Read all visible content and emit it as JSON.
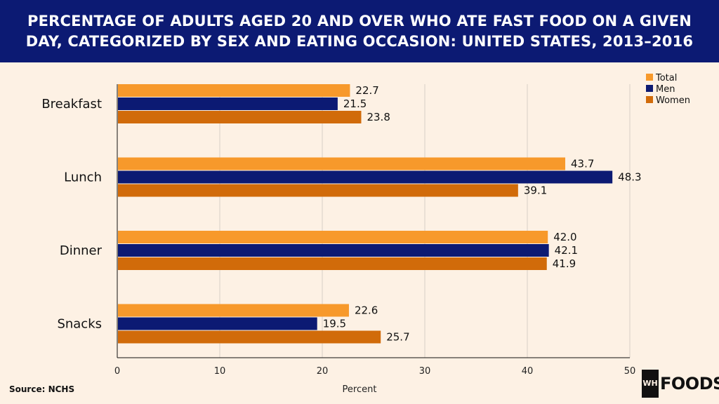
{
  "header": {
    "title": "PERCENTAGE OF ADULTS AGED 20 AND OVER WHO ATE FAST FOOD ON A GIVEN DAY, CATEGORIZED BY SEX AND EATING OCCASION: UNITED STATES, 2013–2016"
  },
  "footer": {
    "source": "Source: NCHS",
    "logo_mark": "WH",
    "logo_text": "FOODS"
  },
  "colors": {
    "header_bg": "#0c1a73",
    "background": "#fdf1e4",
    "total": "#f7992b",
    "men": "#0c1a73",
    "women": "#d16b0a"
  },
  "chart_data": {
    "type": "bar",
    "orientation": "horizontal",
    "title": "PERCENTAGE OF ADULTS AGED 20 AND OVER WHO ATE FAST FOOD ON A GIVEN DAY, CATEGORIZED BY SEX AND EATING OCCASION: UNITED STATES, 2013–2016",
    "categories": [
      "Breakfast",
      "Lunch",
      "Dinner",
      "Snacks"
    ],
    "series": [
      {
        "name": "Total",
        "color": "#f7992b",
        "values": [
          22.7,
          43.7,
          42.0,
          22.6
        ],
        "labels": [
          "22.7",
          "43.7",
          "42.0",
          "22.6"
        ]
      },
      {
        "name": "Men",
        "color": "#0c1a73",
        "values": [
          21.5,
          48.3,
          42.1,
          19.5
        ],
        "labels": [
          "21.5",
          "48.3",
          "42.1",
          "19.5"
        ]
      },
      {
        "name": "Women",
        "color": "#d16b0a",
        "values": [
          23.8,
          39.1,
          41.9,
          25.7
        ],
        "labels": [
          "23.8",
          "39.1",
          "41.9",
          "25.7"
        ]
      }
    ],
    "xlabel": "Percent",
    "ylabel": "",
    "xlim": [
      0,
      50
    ],
    "xticks": [
      "0",
      "10",
      "20",
      "30",
      "40",
      "50"
    ],
    "grid": true,
    "legend_position": "top-right"
  }
}
